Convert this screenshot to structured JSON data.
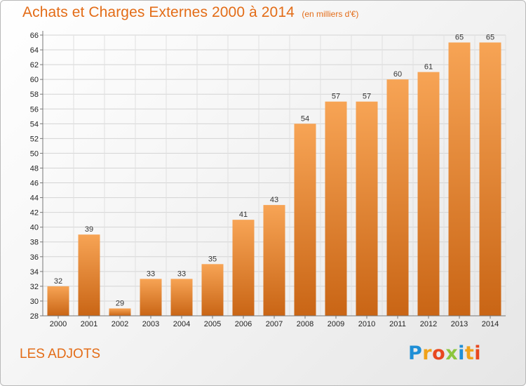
{
  "header": {
    "title": "Achats et Charges Externes 2000 à 2014",
    "subtitle": "(en milliers d'€)"
  },
  "footer": {
    "place": "LES ADJOTS",
    "logo": "Proxiti"
  },
  "colors": {
    "accent": "#e36c17",
    "bar_light": "#f7a455",
    "bar_dark": "#c96515"
  },
  "chart_data": {
    "type": "bar",
    "categories": [
      "2000",
      "2001",
      "2002",
      "2003",
      "2004",
      "2005",
      "2006",
      "2007",
      "2008",
      "2009",
      "2010",
      "2011",
      "2012",
      "2013",
      "2014"
    ],
    "values": [
      32,
      39,
      29,
      33,
      33,
      35,
      41,
      43,
      54,
      57,
      57,
      60,
      61,
      65,
      65
    ],
    "ylim": [
      28,
      66
    ],
    "ytick_step": 2,
    "grid": true
  }
}
